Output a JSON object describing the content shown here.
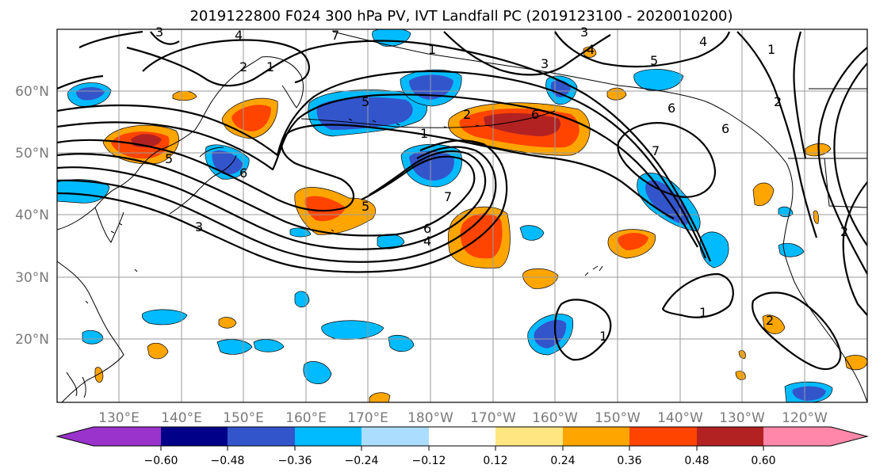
{
  "figure": {
    "title": "2019122800 F024 300 hPa PV, IVT Landfall PC (2019123100 - 2020010200)"
  },
  "map": {
    "lat_labels": [
      "60°N",
      "50°N",
      "40°N",
      "30°N",
      "20°N"
    ],
    "lon_labels": [
      "130°E",
      "140°E",
      "150°E",
      "160°E",
      "170°E",
      "180°W",
      "170°W",
      "160°W",
      "150°W",
      "140°W",
      "130°W",
      "120°W"
    ],
    "contour_labels": [
      "3",
      "4",
      "2",
      "1",
      "5",
      "7",
      "1",
      "5",
      "3",
      "4",
      "5",
      "6",
      "1",
      "2",
      "3",
      "6",
      "7",
      "5",
      "4",
      "6",
      "6",
      "7",
      "3",
      "2",
      "1",
      "6",
      "4",
      "1",
      "2",
      "1",
      "2"
    ]
  },
  "colorbar": {
    "tick_labels": [
      "−0.60",
      "−0.48",
      "−0.36",
      "−0.24",
      "−0.12",
      "0.12",
      "0.24",
      "0.36",
      "0.48",
      "0.60"
    ],
    "colors": [
      "#9933cc",
      "#000088",
      "#3355cc",
      "#00bbff",
      "#aaddff",
      "#ffffff",
      "#ffe680",
      "#ffa500",
      "#ff4400",
      "#b22222",
      "#ff88aa"
    ]
  }
}
